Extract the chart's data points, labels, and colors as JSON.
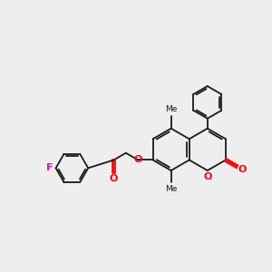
{
  "bg_color": "#eeeeee",
  "bond_color": "#1a1a1a",
  "oxygen_color": "#ff0000",
  "fluorine_color": "#ff00cc",
  "line_width": 1.3,
  "dbo": 0.055,
  "xlim": [
    0,
    10
  ],
  "ylim": [
    0,
    10
  ],
  "ring_r": 0.78,
  "ph_r": 0.6,
  "fp_r": 0.6
}
